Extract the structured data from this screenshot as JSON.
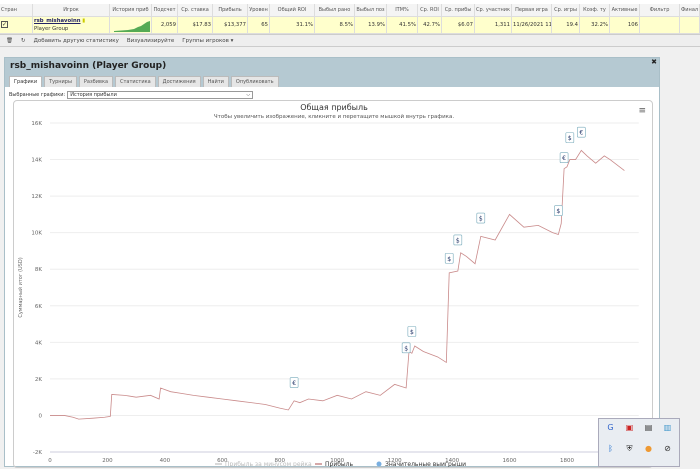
{
  "grid": {
    "headers": [
      "Стран",
      "Игрок",
      "История приб",
      "Подсчет",
      "Ср. ставка",
      "Прибыль",
      "Уровен",
      "Общий ROI",
      "Выбыл рано",
      "Выбыл поз",
      "ITM%",
      "Ср. ROI",
      "Ср. прибы",
      "Ср. участник",
      "Первая игра",
      "Ср. игры",
      "Коэф. ту",
      "Активные",
      "Фильтр",
      "Финал"
    ],
    "row": {
      "player": "rsb_mishavoinn",
      "group": "Player Group",
      "values": [
        "2,059",
        "$17.83",
        "$13,377",
        "65",
        "31.1%",
        "8.5%",
        "13.9%",
        "41.5%",
        "42.7%",
        "$6.07",
        "1,311",
        "11/26/2021 11",
        "19.4",
        "32.2%",
        "106",
        "",
        ""
      ]
    },
    "toolbar": {
      "add_stats": "Добавить другую статистику",
      "visualize": "Визуализируйте",
      "groups": "Группы игроков ▾"
    }
  },
  "panel": {
    "title": "rsb_mishavoinn (Player Group)",
    "tabs": [
      "Графики",
      "Турниры",
      "Разбивка",
      "Статистика",
      "Достижения",
      "Найти",
      "Опубликовать"
    ],
    "selected_label": "Выбранные графики:",
    "selected_value": "История прибыли"
  },
  "chart_data": {
    "type": "line",
    "title": "Общая прибыль",
    "subtitle": "Чтобы увеличить изображение, кликните и перетащите мышкой внутрь графика.",
    "ylabel": "Суммарный итог (USD)",
    "xlim": [
      0,
      2050
    ],
    "ylim": [
      -2000,
      16000
    ],
    "xticks": [
      0,
      200,
      400,
      600,
      800,
      1000,
      1200,
      1400,
      1600,
      1800
    ],
    "yticks": [
      "-2K",
      "0",
      "2K",
      "4K",
      "6K",
      "8K",
      "10K",
      "12K",
      "14K",
      "16K"
    ],
    "legend": [
      "Прибыль за минусом рейка",
      "Прибыль",
      "Значительные выигрыши"
    ],
    "series": [
      {
        "name": "Прибыль",
        "color": "#c98a8a",
        "points": [
          [
            0,
            0
          ],
          [
            50,
            0
          ],
          [
            80,
            -100
          ],
          [
            100,
            -200
          ],
          [
            150,
            -150
          ],
          [
            190,
            -100
          ],
          [
            210,
            -50
          ],
          [
            215,
            1150
          ],
          [
            260,
            1100
          ],
          [
            300,
            1000
          ],
          [
            350,
            1100
          ],
          [
            380,
            900
          ],
          [
            385,
            1500
          ],
          [
            420,
            1300
          ],
          [
            460,
            1200
          ],
          [
            500,
            1100
          ],
          [
            550,
            1000
          ],
          [
            600,
            900
          ],
          [
            650,
            800
          ],
          [
            700,
            700
          ],
          [
            750,
            600
          ],
          [
            800,
            400
          ],
          [
            830,
            300
          ],
          [
            850,
            800
          ],
          [
            870,
            700
          ],
          [
            900,
            900
          ],
          [
            950,
            800
          ],
          [
            1000,
            1100
          ],
          [
            1050,
            900
          ],
          [
            1100,
            1300
          ],
          [
            1150,
            1100
          ],
          [
            1200,
            1700
          ],
          [
            1240,
            1500
          ],
          [
            1250,
            3500
          ],
          [
            1260,
            3400
          ],
          [
            1270,
            3800
          ],
          [
            1300,
            3500
          ],
          [
            1350,
            3200
          ],
          [
            1380,
            2900
          ],
          [
            1390,
            7800
          ],
          [
            1420,
            7900
          ],
          [
            1430,
            8900
          ],
          [
            1450,
            8700
          ],
          [
            1480,
            8300
          ],
          [
            1500,
            9800
          ],
          [
            1550,
            9600
          ],
          [
            1600,
            11000
          ],
          [
            1650,
            10300
          ],
          [
            1700,
            10400
          ],
          [
            1750,
            10000
          ],
          [
            1770,
            9900
          ],
          [
            1780,
            10500
          ],
          [
            1790,
            13500
          ],
          [
            1800,
            13600
          ],
          [
            1810,
            14000
          ],
          [
            1830,
            14000
          ],
          [
            1850,
            14500
          ],
          [
            1870,
            14200
          ],
          [
            1900,
            13800
          ],
          [
            1930,
            14200
          ],
          [
            1950,
            14000
          ],
          [
            2000,
            13400
          ]
        ]
      }
    ],
    "big_wins": [
      [
        850,
        1800,
        "€"
      ],
      [
        1240,
        3700,
        "$"
      ],
      [
        1260,
        4600,
        "$"
      ],
      [
        1390,
        8600,
        "$"
      ],
      [
        1420,
        9600,
        "$"
      ],
      [
        1500,
        10800,
        "$"
      ],
      [
        1770,
        11200,
        "$"
      ],
      [
        1790,
        14100,
        "€"
      ],
      [
        1810,
        15200,
        "$"
      ],
      [
        1850,
        15500,
        "€"
      ]
    ]
  }
}
